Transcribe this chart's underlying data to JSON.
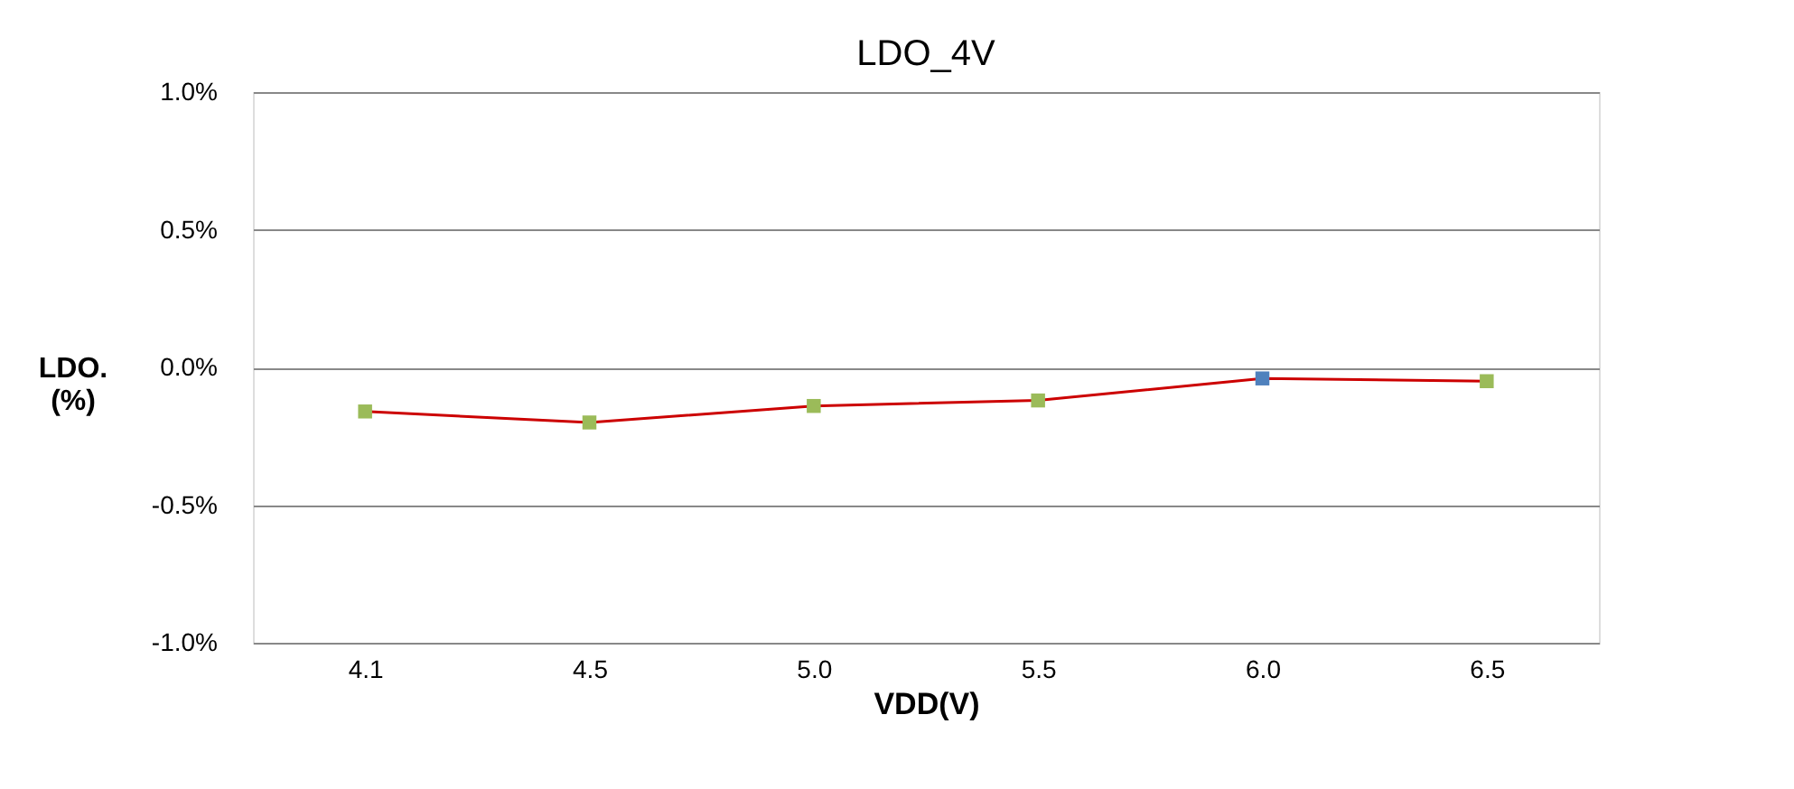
{
  "chart_data": {
    "type": "line",
    "title": "LDO_4V",
    "xlabel": "VDD(V)",
    "ylabel": "LDO. (%)",
    "categories": [
      "4.1",
      "4.5",
      "5.0",
      "5.5",
      "6.0",
      "6.5"
    ],
    "series": [
      {
        "color": "#cc0000",
        "colors": [
          "#9bbb59",
          "#9bbb59",
          "#9bbb59",
          "#9bbb59",
          "#4f81bd",
          "#9bbb59"
        ],
        "values": [
          -0.16,
          -0.2,
          -0.14,
          -0.12,
          -0.04,
          -0.05
        ]
      }
    ],
    "ylim": [
      -1.0,
      1.0
    ],
    "yticks": [
      {
        "value": -1.0,
        "label": "-1.0%"
      },
      {
        "value": -0.5,
        "label": "-0.5%"
      },
      {
        "value": 0.0,
        "label": "0.0%"
      },
      {
        "value": 0.5,
        "label": "0.5%"
      },
      {
        "value": 1.0,
        "label": "1.0%"
      }
    ],
    "grid": "y",
    "marker": "square",
    "line_style": "solid"
  }
}
